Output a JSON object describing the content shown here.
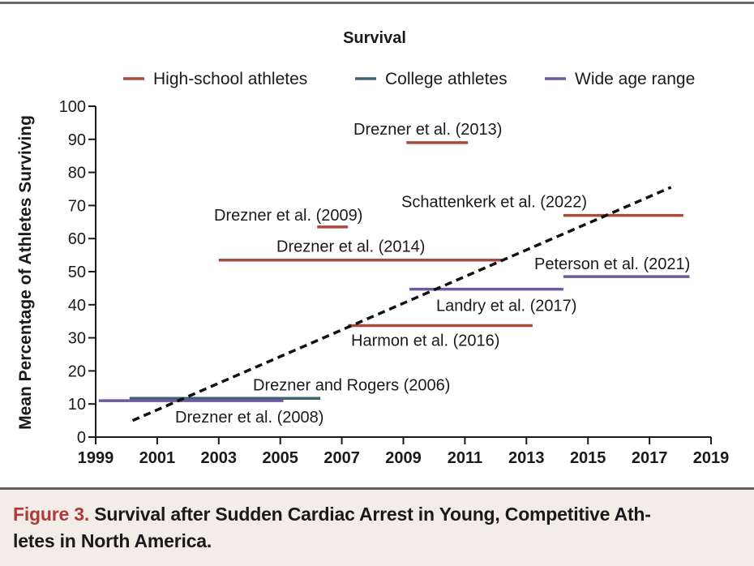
{
  "chart_data": {
    "type": "line",
    "title": "Survival",
    "xlabel": "",
    "ylabel": "Mean Percentage of Athletes Surviving",
    "xlim": [
      1999,
      2019
    ],
    "ylim": [
      0,
      100
    ],
    "x_ticks": [
      "1999",
      "2001",
      "2003",
      "2005",
      "2007",
      "2009",
      "2011",
      "2013",
      "2015",
      "2017",
      "2019"
    ],
    "y_ticks": [
      "0",
      "10",
      "20",
      "30",
      "40",
      "50",
      "60",
      "70",
      "80",
      "90",
      "100"
    ],
    "grid": false,
    "legend_position": "top-center",
    "legend": [
      {
        "key": "high_school",
        "label": "High-school athletes",
        "color": "#a94a3e"
      },
      {
        "key": "college",
        "label": "College athletes",
        "color": "#3f6272"
      },
      {
        "key": "wide",
        "label": "Wide age range",
        "color": "#6e5a9c"
      }
    ],
    "series": [
      {
        "name": "Drezner et al. (2013)",
        "group": "high_school",
        "x_start": 2009.1,
        "x_end": 2011.1,
        "value": 89,
        "label_pos": "above"
      },
      {
        "name": "Drezner et al. (2009)",
        "group": "high_school",
        "x_start": 2006.2,
        "x_end": 2007.2,
        "value": 63.5,
        "label_pos": "above"
      },
      {
        "name": "Drezner et al. (2014)",
        "group": "high_school",
        "x_start": 2003.0,
        "x_end": 2012.2,
        "value": 53.5,
        "label_pos": "above"
      },
      {
        "name": "Schattenkerk et al. (2022)",
        "group": "high_school",
        "x_start": 2014.2,
        "x_end": 2018.1,
        "value": 67,
        "label_pos": "above"
      },
      {
        "name": "Harmon et al. (2016)",
        "group": "high_school",
        "x_start": 2007.2,
        "x_end": 2013.2,
        "value": 33.7,
        "label_pos": "below"
      },
      {
        "name": "Peterson et al. (2021)",
        "group": "wide",
        "x_start": 2014.2,
        "x_end": 2018.3,
        "value": 48.5,
        "label_pos": "above"
      },
      {
        "name": "Landry et al. (2017)",
        "group": "wide",
        "x_start": 2009.2,
        "x_end": 2014.2,
        "value": 44.7,
        "label_pos": "below"
      },
      {
        "name": "Drezner and Rogers (2006)",
        "group": "college",
        "x_start": 2000.1,
        "x_end": 2006.3,
        "value": 11.7,
        "label_pos": "above"
      },
      {
        "name": "Drezner et al. (2008)",
        "group": "wide",
        "x_start": 1999.1,
        "x_end": 2005.1,
        "value": 11.0,
        "label_pos": "below"
      }
    ],
    "trend_line": {
      "style": "dashed",
      "color": "#111111",
      "x_start": 2000.2,
      "y_start": 5,
      "x_end": 2017.7,
      "y_end": 75.5
    }
  },
  "caption": {
    "figure_label": "Figure 3.",
    "text": " Survival after Sudden Cardiac Arrest in Young, Competitive Ath-\nletes in North America."
  }
}
